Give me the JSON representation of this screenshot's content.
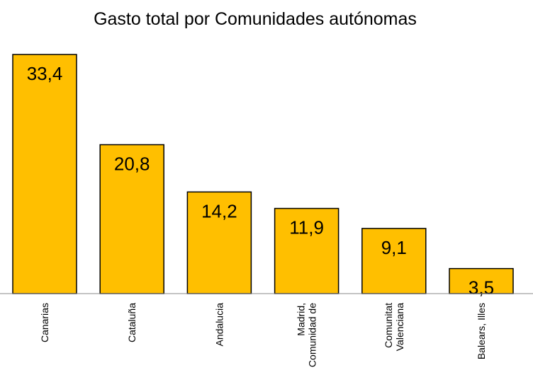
{
  "chart_data": {
    "type": "bar",
    "title": "Gasto total por Comunidades autónomas",
    "categories": [
      [
        "Canarias"
      ],
      [
        "Cataluña"
      ],
      [
        "Andalucia"
      ],
      [
        "Madrid,",
        "Comunidad de"
      ],
      [
        "Comunitat",
        "Valenciana"
      ],
      [
        "Balears, Illes"
      ]
    ],
    "values": [
      33.4,
      20.8,
      14.2,
      11.9,
      9.1,
      3.5
    ],
    "value_labels": [
      "33,4",
      "20,8",
      "14,2",
      "11,9",
      "9,1",
      "3,5"
    ],
    "xlabel": "",
    "ylabel": "",
    "ylim": [
      0,
      33.4
    ],
    "grid": false,
    "colors": {
      "bar_fill": "#FFBF00",
      "bar_stroke": "#000000",
      "axis": "#888888"
    }
  }
}
